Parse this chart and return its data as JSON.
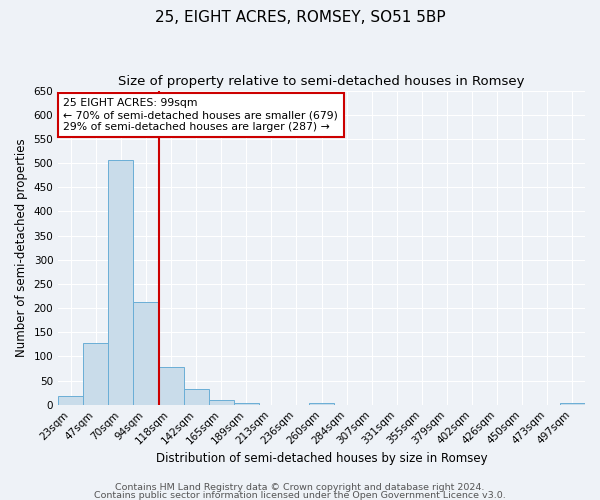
{
  "title": "25, EIGHT ACRES, ROMSEY, SO51 5BP",
  "subtitle": "Size of property relative to semi-detached houses in Romsey",
  "xlabel": "Distribution of semi-detached houses by size in Romsey",
  "ylabel": "Number of semi-detached properties",
  "bin_labels": [
    "23sqm",
    "47sqm",
    "70sqm",
    "94sqm",
    "118sqm",
    "142sqm",
    "165sqm",
    "189sqm",
    "213sqm",
    "236sqm",
    "260sqm",
    "284sqm",
    "307sqm",
    "331sqm",
    "355sqm",
    "379sqm",
    "402sqm",
    "426sqm",
    "450sqm",
    "473sqm",
    "497sqm"
  ],
  "bar_values": [
    18,
    127,
    507,
    213,
    78,
    32,
    9,
    4,
    0,
    0,
    4,
    0,
    0,
    0,
    0,
    0,
    0,
    0,
    0,
    0,
    4
  ],
  "bar_color": "#c9dcea",
  "bar_edge_color": "#6aaed6",
  "ylim": [
    0,
    650
  ],
  "yticks": [
    0,
    50,
    100,
    150,
    200,
    250,
    300,
    350,
    400,
    450,
    500,
    550,
    600,
    650
  ],
  "property_bin_index": 3,
  "vline_color": "#cc0000",
  "annotation_title": "25 EIGHT ACRES: 99sqm",
  "annotation_line1": "← 70% of semi-detached houses are smaller (679)",
  "annotation_line2": "29% of semi-detached houses are larger (287) →",
  "annotation_box_color": "#ffffff",
  "annotation_box_edge": "#cc0000",
  "footer_line1": "Contains HM Land Registry data © Crown copyright and database right 2024.",
  "footer_line2": "Contains public sector information licensed under the Open Government Licence v3.0.",
  "background_color": "#eef2f7",
  "plot_background": "#eef2f7",
  "grid_color": "#ffffff",
  "title_fontsize": 11,
  "subtitle_fontsize": 9.5,
  "axis_label_fontsize": 8.5,
  "tick_fontsize": 7.5,
  "annotation_fontsize": 7.8,
  "footer_fontsize": 6.8
}
